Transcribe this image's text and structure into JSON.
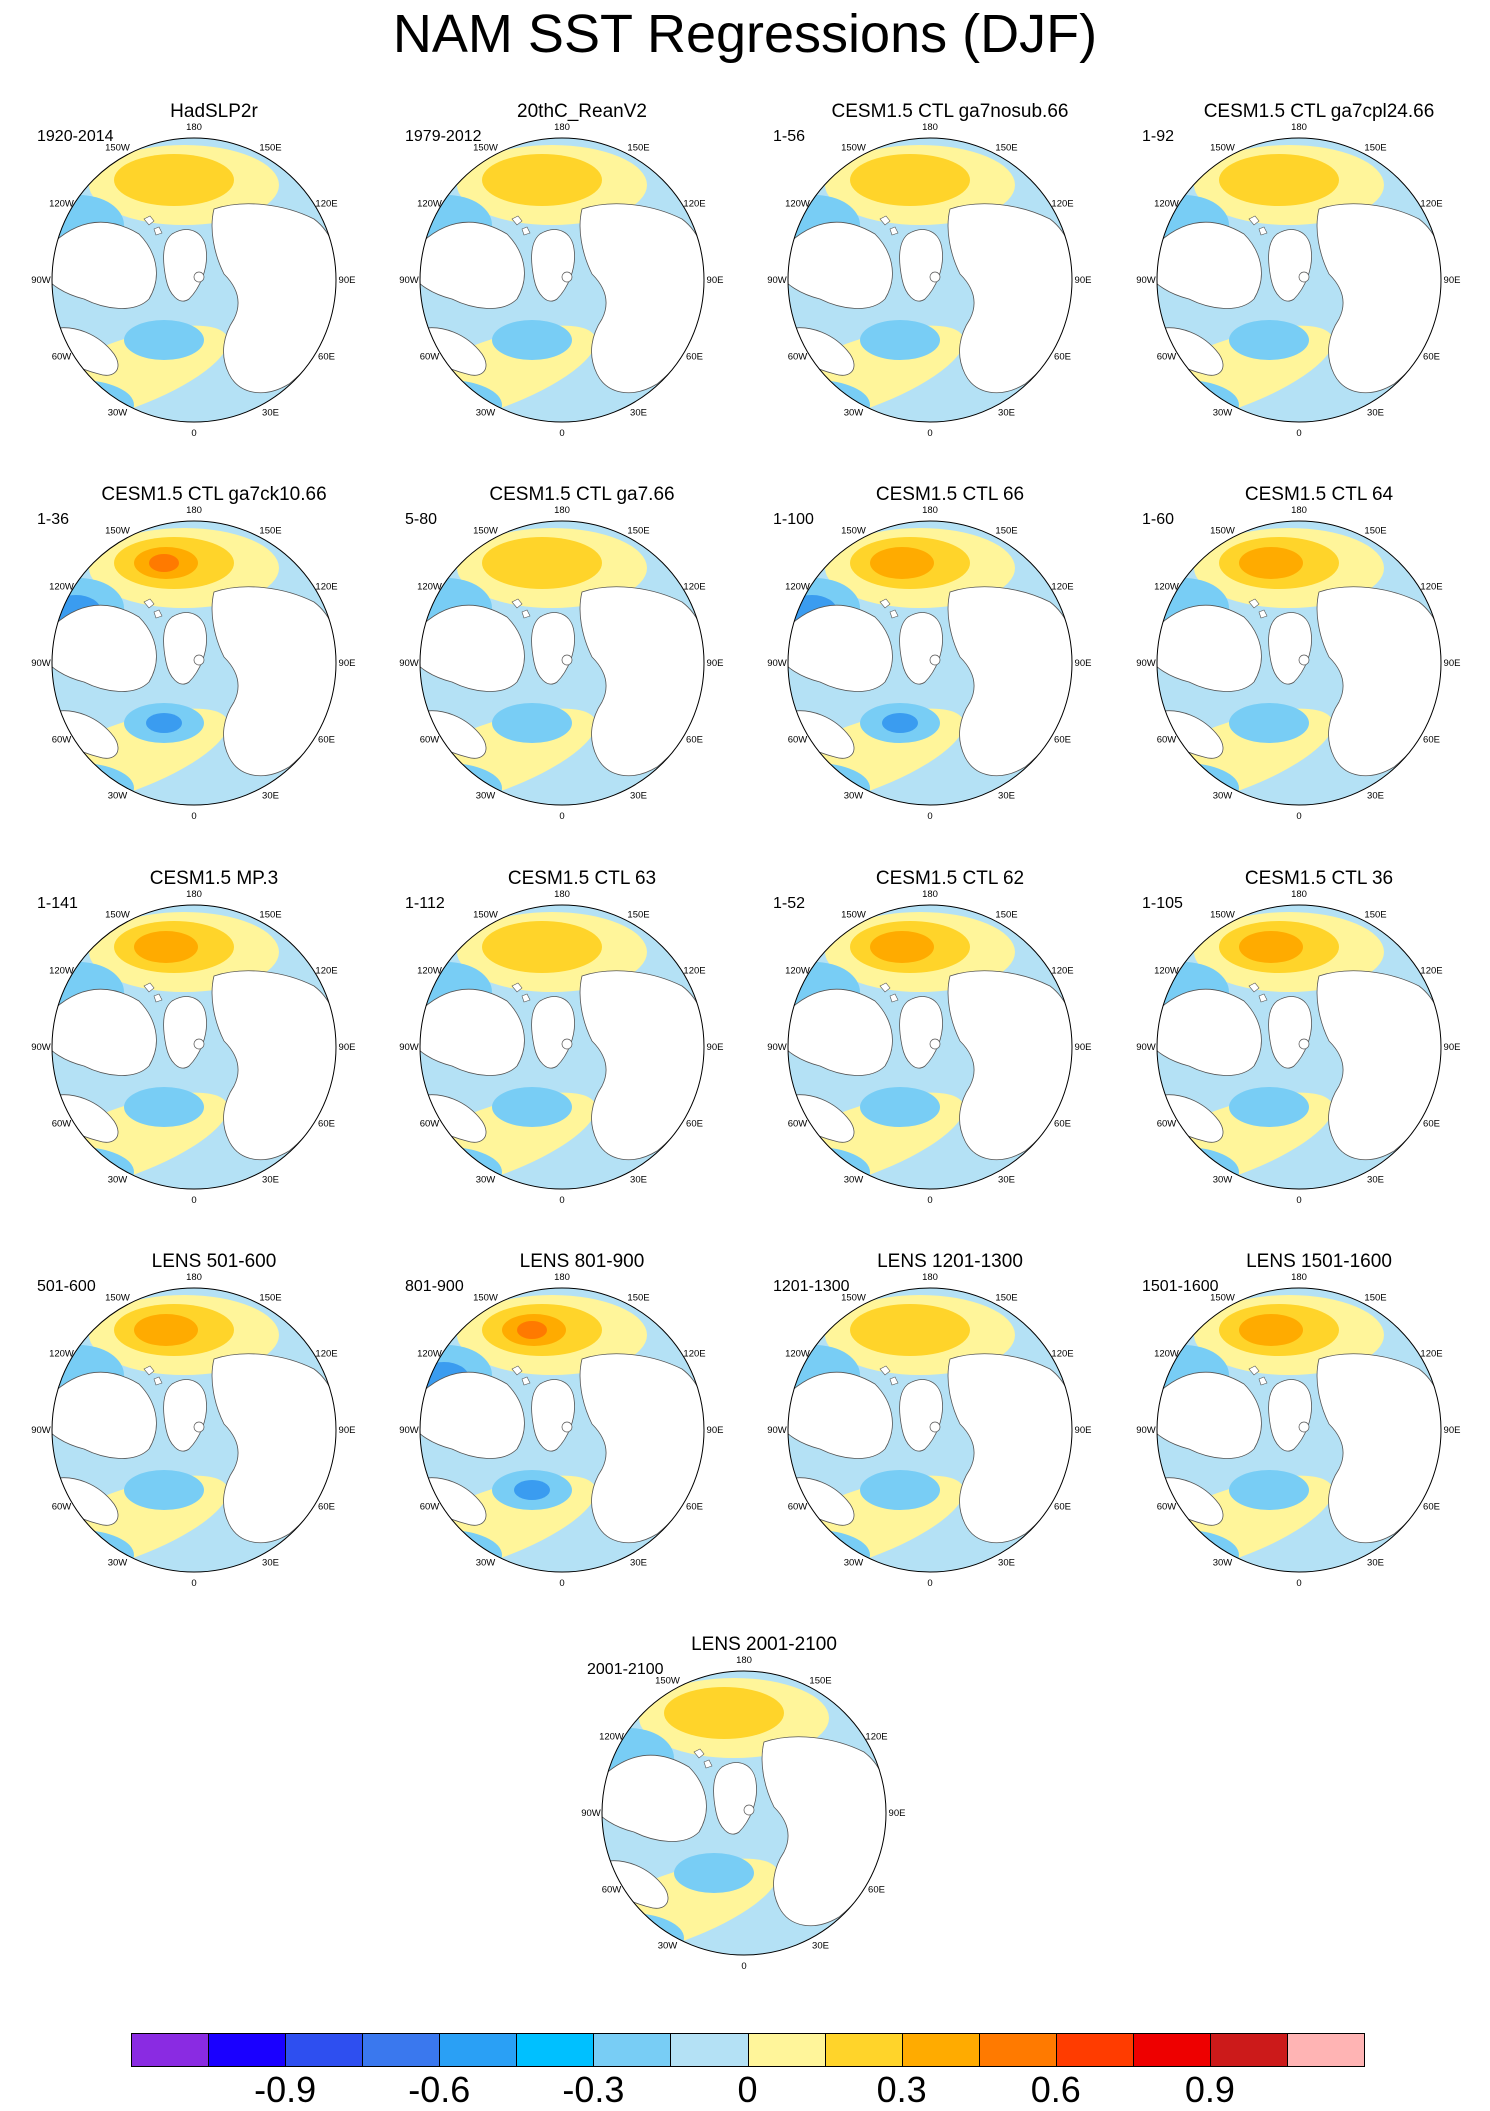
{
  "title": "NAM SST Regressions (DJF)",
  "longitude_labels": [
    "180",
    "150E",
    "120E",
    "90E",
    "60E",
    "30E",
    "0",
    "30W",
    "60W",
    "90W",
    "120W",
    "150W"
  ],
  "panels": [
    {
      "title": "HadSLP2r",
      "period": "1920-2014"
    },
    {
      "title": "20thC_ReanV2",
      "period": "1979-2012"
    },
    {
      "title": "CESM1.5 CTL ga7nosub.66",
      "period": "1-56"
    },
    {
      "title": "CESM1.5 CTL ga7cpl24.66",
      "period": "1-92"
    },
    {
      "title": "CESM1.5 CTL ga7ck10.66",
      "period": "1-36"
    },
    {
      "title": "CESM1.5 CTL ga7.66",
      "period": "5-80"
    },
    {
      "title": "CESM1.5 CTL 66",
      "period": "1-100"
    },
    {
      "title": "CESM1.5 CTL 64",
      "period": "1-60"
    },
    {
      "title": "CESM1.5 MP.3",
      "period": "1-141"
    },
    {
      "title": "CESM1.5 CTL 63",
      "period": "1-112"
    },
    {
      "title": "CESM1.5 CTL 62",
      "period": "1-52"
    },
    {
      "title": "CESM1.5 CTL 36",
      "period": "1-105"
    },
    {
      "title": "LENS 501-600",
      "period": "501-600"
    },
    {
      "title": "LENS 801-900",
      "period": "801-900"
    },
    {
      "title": "LENS 1201-1300",
      "period": "1201-1300"
    },
    {
      "title": "LENS 1501-1600",
      "period": "1501-1600"
    },
    {
      "title": "LENS 2001-2100",
      "period": "2001-2100"
    }
  ],
  "colorbar": {
    "colors": [
      "#8a2be2",
      "#1a00ff",
      "#2e4ff0",
      "#3a78ee",
      "#2aa0f5",
      "#00c0ff",
      "#78cdf5",
      "#b4e1f5",
      "#fff59a",
      "#ffd42a",
      "#ffab00",
      "#ff7a00",
      "#ff3c00",
      "#ee0000",
      "#cc1a1a",
      "#ffb4b4"
    ],
    "labels": [
      "-0.9",
      "-0.6",
      "-0.3",
      "0",
      "0.3",
      "0.6",
      "0.9"
    ],
    "label_values": [
      -0.9,
      -0.6,
      -0.3,
      0,
      0.3,
      0.6,
      0.9
    ],
    "boundaries": [
      -1.05,
      -0.9,
      -0.75,
      -0.6,
      -0.45,
      -0.3,
      -0.15,
      0,
      0.15,
      0.3,
      0.45,
      0.6,
      0.75,
      0.9,
      1.05
    ]
  }
}
